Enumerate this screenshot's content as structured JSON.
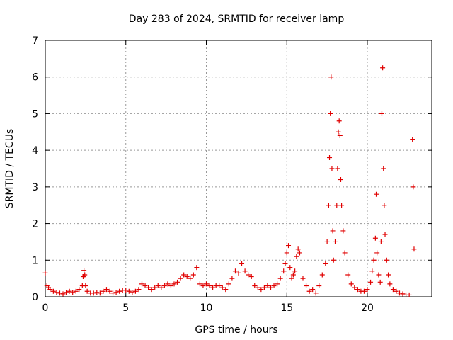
{
  "chart_data": {
    "type": "scatter",
    "title": "Day 283 of 2024, SRMTID for receiver lamp",
    "xlabel": "GPS time / hours",
    "ylabel": "SRMTID / TECUs",
    "xlim": [
      0,
      24
    ],
    "ylim": [
      0,
      7
    ],
    "xticks": [
      0,
      5,
      10,
      15,
      20
    ],
    "yticks": [
      0,
      1,
      2,
      3,
      4,
      5,
      6,
      7
    ],
    "grid": true,
    "marker": "+",
    "colors": {
      "series": "#e00000",
      "grid": "#999999",
      "axis": "#000000"
    },
    "series": [
      {
        "name": "SRMTID",
        "x": [
          0.0,
          0.1,
          0.2,
          0.3,
          0.5,
          0.7,
          0.9,
          1.1,
          1.3,
          1.5,
          1.7,
          1.9,
          2.1,
          2.3,
          2.35,
          2.4,
          2.45,
          2.5,
          2.6,
          2.8,
          3.0,
          3.2,
          3.4,
          3.6,
          3.8,
          4.0,
          4.2,
          4.4,
          4.6,
          4.8,
          5.0,
          5.2,
          5.4,
          5.6,
          5.8,
          6.0,
          6.2,
          6.4,
          6.6,
          6.8,
          7.0,
          7.2,
          7.4,
          7.6,
          7.8,
          8.0,
          8.2,
          8.4,
          8.6,
          8.8,
          9.0,
          9.2,
          9.4,
          9.6,
          9.8,
          10.0,
          10.2,
          10.4,
          10.6,
          10.8,
          11.0,
          11.2,
          11.4,
          11.6,
          11.8,
          12.0,
          12.2,
          12.4,
          12.6,
          12.8,
          13.0,
          13.2,
          13.4,
          13.6,
          13.8,
          14.0,
          14.2,
          14.4,
          14.6,
          14.8,
          14.9,
          15.0,
          15.1,
          15.2,
          15.3,
          15.4,
          15.5,
          15.6,
          15.7,
          15.8,
          16.0,
          16.2,
          16.4,
          16.6,
          16.8,
          17.0,
          17.2,
          17.4,
          17.5,
          17.6,
          17.65,
          17.7,
          17.75,
          17.8,
          17.85,
          17.9,
          18.0,
          18.1,
          18.15,
          18.2,
          18.25,
          18.3,
          18.35,
          18.4,
          18.5,
          18.6,
          18.8,
          19.0,
          19.2,
          19.4,
          19.6,
          19.8,
          20.0,
          20.2,
          20.3,
          20.4,
          20.5,
          20.55,
          20.6,
          20.7,
          20.8,
          20.85,
          20.9,
          20.95,
          21.0,
          21.05,
          21.1,
          21.2,
          21.3,
          21.4,
          21.6,
          21.8,
          22.0,
          22.2,
          22.4,
          22.6,
          22.8,
          22.85,
          22.9
        ],
        "y": [
          0.65,
          0.3,
          0.25,
          0.2,
          0.15,
          0.12,
          0.1,
          0.08,
          0.12,
          0.15,
          0.12,
          0.15,
          0.2,
          0.3,
          0.55,
          0.72,
          0.6,
          0.3,
          0.15,
          0.1,
          0.1,
          0.12,
          0.1,
          0.15,
          0.2,
          0.15,
          0.1,
          0.12,
          0.15,
          0.18,
          0.18,
          0.15,
          0.12,
          0.15,
          0.2,
          0.35,
          0.3,
          0.25,
          0.2,
          0.25,
          0.3,
          0.25,
          0.3,
          0.35,
          0.3,
          0.35,
          0.4,
          0.5,
          0.6,
          0.55,
          0.5,
          0.6,
          0.8,
          0.35,
          0.3,
          0.35,
          0.3,
          0.25,
          0.3,
          0.3,
          0.25,
          0.2,
          0.35,
          0.5,
          0.7,
          0.65,
          0.9,
          0.7,
          0.6,
          0.55,
          0.3,
          0.25,
          0.2,
          0.25,
          0.3,
          0.25,
          0.3,
          0.35,
          0.5,
          0.7,
          0.9,
          1.2,
          1.4,
          0.8,
          0.5,
          0.6,
          0.7,
          1.1,
          1.3,
          1.2,
          0.5,
          0.3,
          0.15,
          0.2,
          0.1,
          0.3,
          0.6,
          0.9,
          1.5,
          2.5,
          3.8,
          5.0,
          6.0,
          3.5,
          1.8,
          1.0,
          1.5,
          2.5,
          3.5,
          4.5,
          4.8,
          4.4,
          3.2,
          2.5,
          1.8,
          1.2,
          0.6,
          0.35,
          0.25,
          0.2,
          0.15,
          0.15,
          0.2,
          0.4,
          0.7,
          1.0,
          1.6,
          2.8,
          1.2,
          0.6,
          0.4,
          1.5,
          5.0,
          6.25,
          3.5,
          2.5,
          1.7,
          1.0,
          0.6,
          0.35,
          0.2,
          0.15,
          0.1,
          0.08,
          0.05,
          0.05,
          4.3,
          3.0,
          1.3
        ]
      }
    ]
  }
}
